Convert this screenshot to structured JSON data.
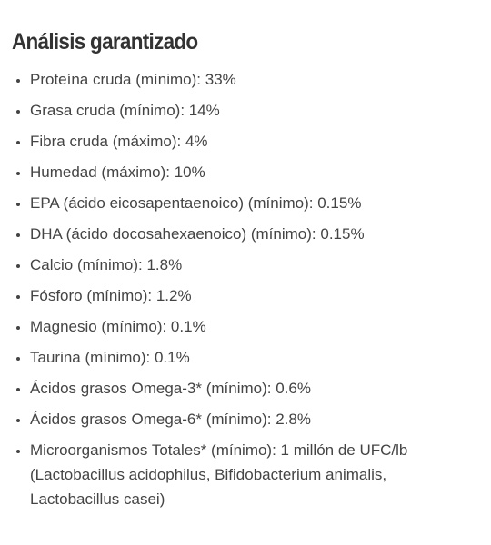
{
  "title": "Análisis garantizado",
  "items": [
    "Proteína cruda (mínimo): 33%",
    "Grasa cruda (mínimo): 14%",
    "Fibra cruda (máximo): 4%",
    "Humedad (máximo): 10%",
    "EPA (ácido eicosapentaenoico) (mínimo): 0.15%",
    "DHA (ácido docosahexaenoico) (mínimo): 0.15%",
    "Calcio (mínimo): 1.8%",
    "Fósforo (mínimo): 1.2%",
    "Magnesio (mínimo): 0.1%",
    "Taurina (mínimo): 0.1%",
    "Ácidos grasos Omega-3* (mínimo): 0.6%",
    "Ácidos grasos Omega-6* (mínimo): 2.8%",
    "Microorganismos Totales* (mínimo): 1 millón de UFC/lb (Lactobacillus acidophilus, Bifidobacterium animalis, Lactobacillus casei)"
  ]
}
